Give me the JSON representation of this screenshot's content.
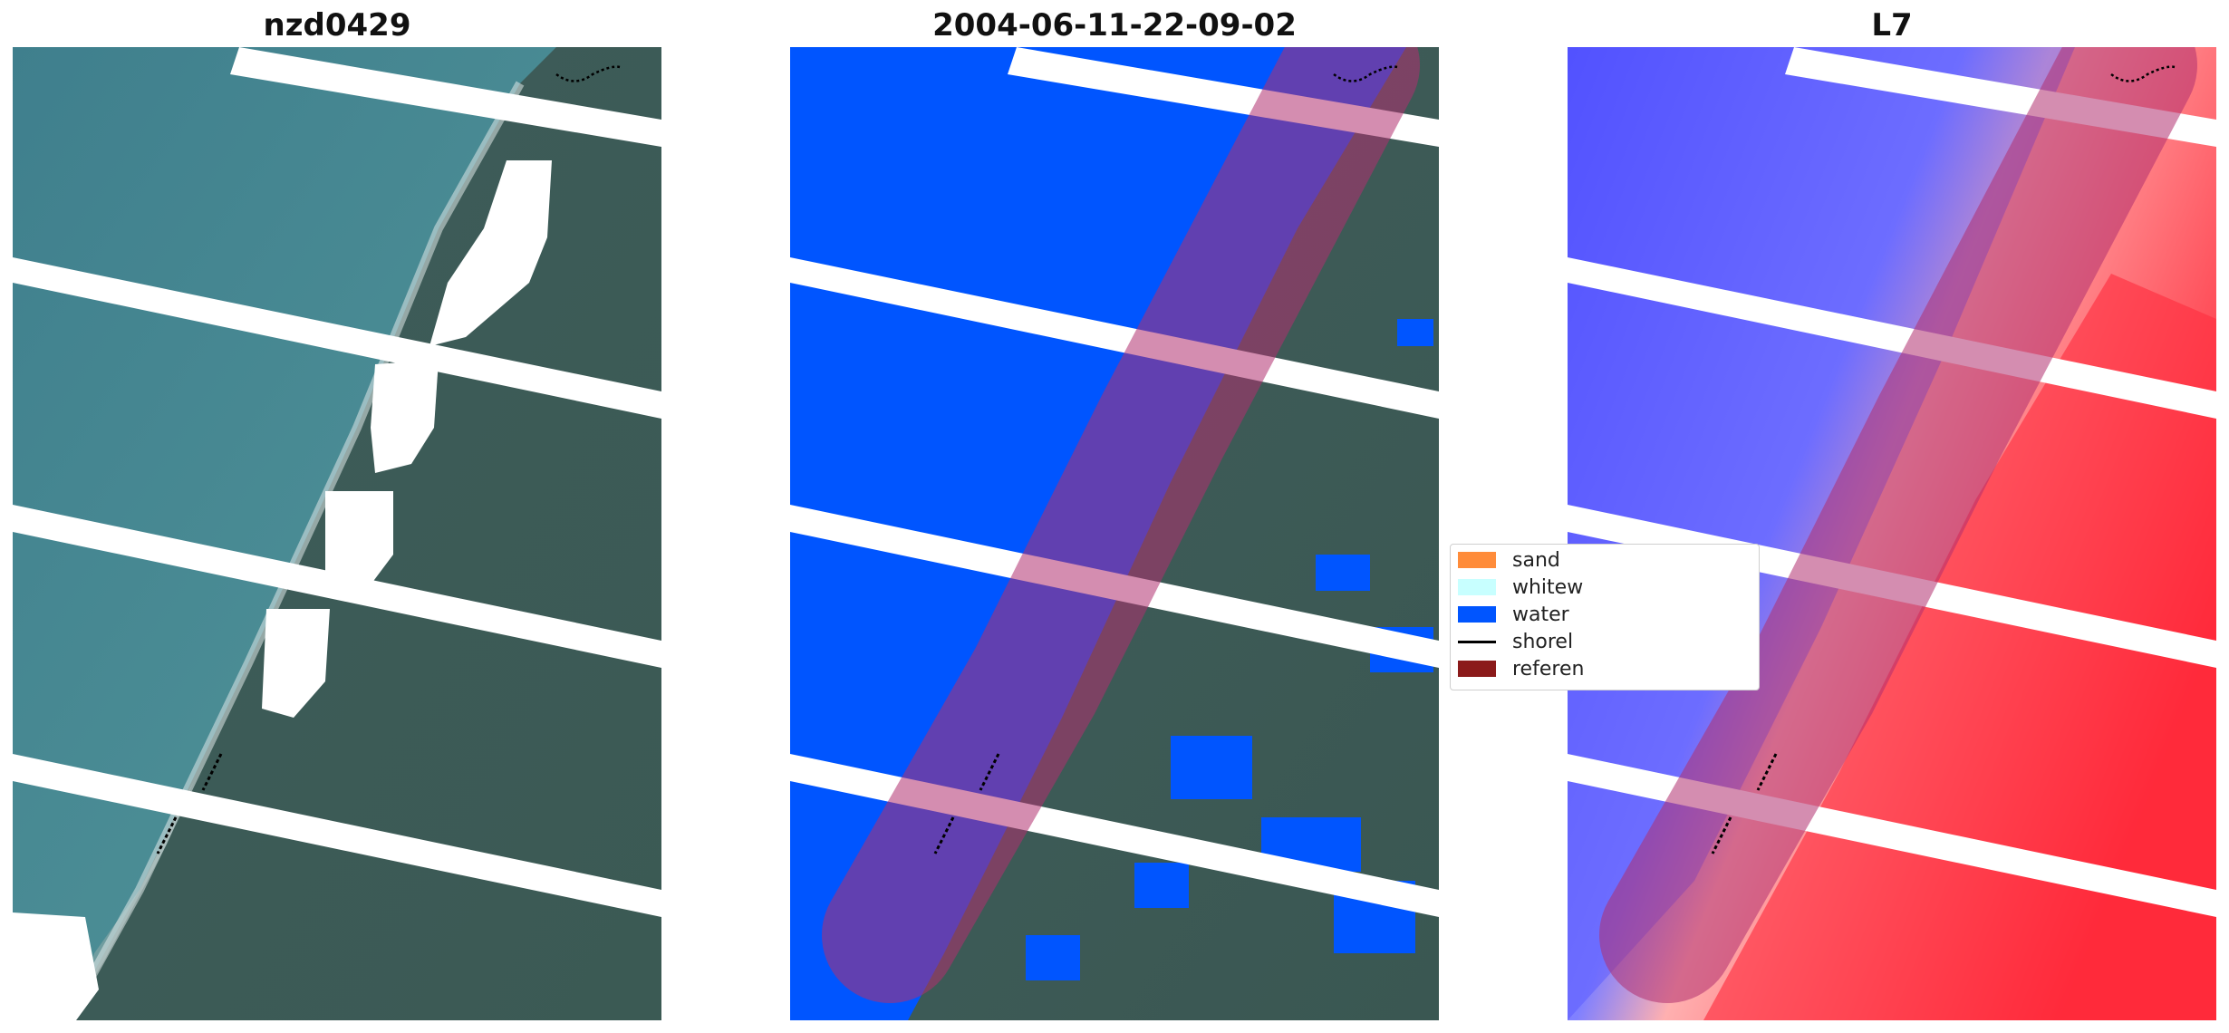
{
  "panels": [
    {
      "title": "nzd0429"
    },
    {
      "title": "2004-06-11-22-09-02"
    },
    {
      "title": "L7"
    }
  ],
  "legend": {
    "items": [
      {
        "label": "sand",
        "color": "#ff8c3a",
        "kind": "patch"
      },
      {
        "label": "whitew",
        "color": "#c8ffff",
        "kind": "patch"
      },
      {
        "label": "water",
        "color": "#0055ff",
        "kind": "patch"
      },
      {
        "label": "shorel",
        "color": "#000000",
        "kind": "line"
      },
      {
        "label": "referen",
        "color": "#8b1a1a",
        "kind": "patch"
      }
    ]
  },
  "colors": {
    "water_class": "#0055ff",
    "buffer": "#b03070",
    "index_low": "#3a3aff",
    "index_high": "#ff1020"
  }
}
